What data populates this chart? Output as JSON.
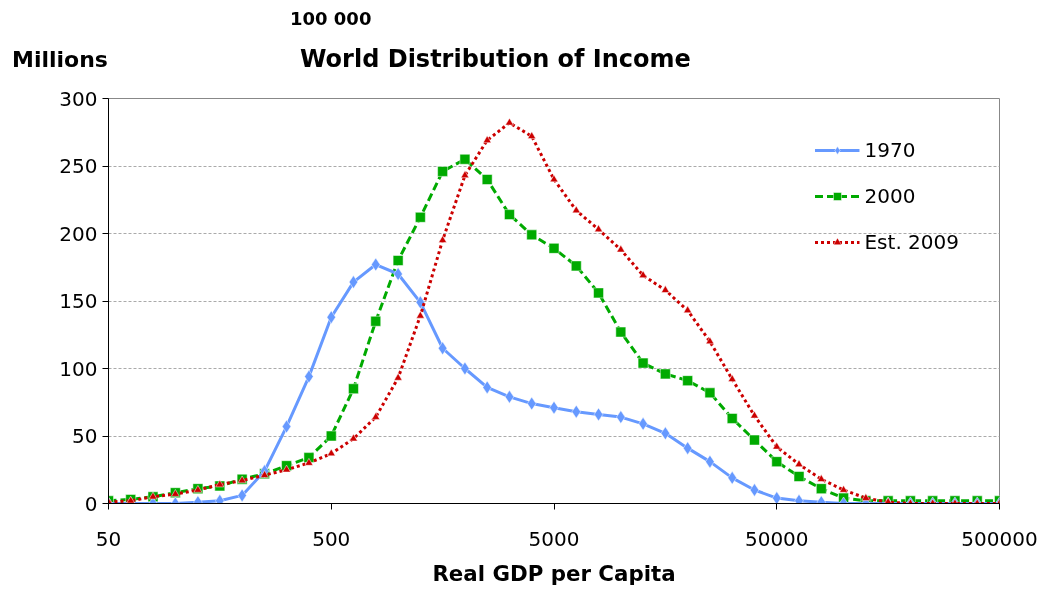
{
  "chart_data": {
    "type": "line",
    "title": "World Distribution of Income",
    "xlabel": "Real GDP per Capita",
    "ylabel": "Millions",
    "annotations": [
      "100 000"
    ],
    "x": [
      50,
      62.9,
      79.2,
      99.8,
      126,
      158,
      199,
      251,
      315,
      397,
      500,
      629,
      792,
      998,
      1256,
      1581,
      1991,
      2506,
      3155,
      3972,
      5000,
      6295,
      7924,
      9976,
      12559,
      15811,
      19905,
      25059,
      31548,
      39716,
      50000,
      62946,
      79245,
      99763,
      125594,
      158114,
      199054,
      250594,
      315479,
      397164,
      500000
    ],
    "series": [
      {
        "name": "1970",
        "color": "#6699ff",
        "marker": "diamond",
        "line_style": "solid",
        "values": [
          0,
          0,
          0,
          0,
          1,
          2,
          6,
          24,
          57,
          94,
          138,
          164,
          177,
          170,
          149,
          115,
          100,
          86,
          79,
          74,
          71,
          68,
          66,
          64,
          59,
          52,
          41,
          31,
          19,
          10,
          4,
          2,
          1,
          0,
          0,
          0,
          0,
          0,
          0,
          0,
          0
        ]
      },
      {
        "name": "2000",
        "color": "#00aa00",
        "marker": "square",
        "line_style": "dashed",
        "values": [
          2,
          3,
          5,
          8,
          11,
          13,
          18,
          22,
          28,
          34,
          50,
          85,
          135,
          180,
          212,
          246,
          255,
          240,
          214,
          199,
          189,
          176,
          156,
          127,
          104,
          96,
          91,
          82,
          63,
          47,
          31,
          20,
          11,
          4,
          2,
          2,
          2,
          2,
          2,
          2,
          2
        ]
      },
      {
        "name": "Est. 2009",
        "color": "#cc0000",
        "marker": "triangle",
        "line_style": "dotted",
        "values": [
          1,
          2,
          5,
          7,
          10,
          14,
          17,
          21,
          25,
          30,
          37,
          48,
          64,
          93,
          139,
          195,
          243,
          269,
          282,
          272,
          240,
          217,
          203,
          188,
          169,
          158,
          143,
          120,
          92,
          65,
          42,
          29,
          18,
          10,
          4,
          1,
          0,
          0,
          0,
          0,
          0
        ]
      }
    ],
    "log": "x",
    "xlim": [
      50,
      500000
    ],
    "xticks": [
      50,
      500,
      5000,
      50000,
      500000
    ],
    "ylim": [
      0,
      300
    ],
    "yticks": [
      0,
      50,
      100,
      150,
      200,
      250,
      300
    ],
    "grid": "y",
    "legend": "top right"
  }
}
